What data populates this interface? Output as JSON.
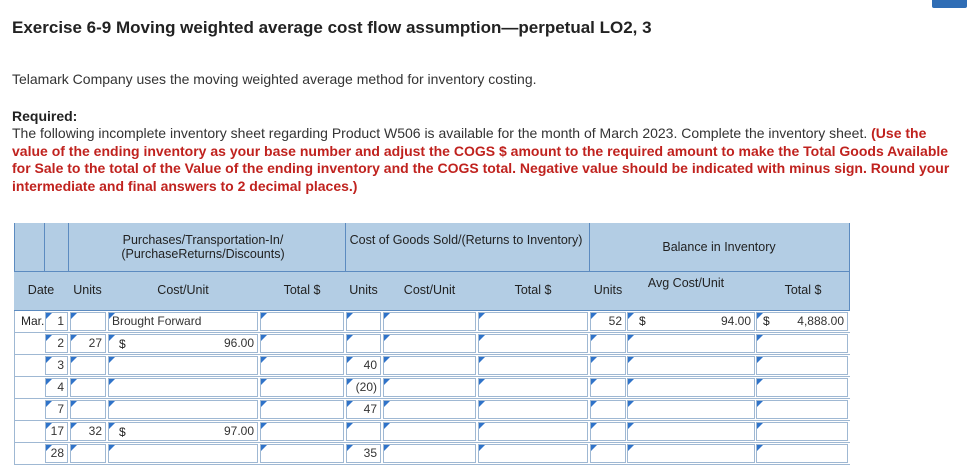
{
  "exercise": {
    "title": "Exercise 6-9 Moving weighted average cost flow assumption—perpetual LO2, 3",
    "intro": "Telamark Company uses the moving weighted average method for inventory costing.",
    "required_label": "Required:",
    "required_text": "The following incomplete inventory sheet regarding Product W506 is available for the month of March 2023. Complete the inventory sheet.",
    "instructions": "(Use the value of the ending inventory as your base number and adjust the COGS $ amount to the required amount to make the Total Goods Available for Sale to the total of the Value of the ending inventory and the COGS total. Negative value should be indicated with minus sign. Round your intermediate and final answers to 2 decimal places.)"
  },
  "table": {
    "group_headers": {
      "purchases": "Purchases/Transportation-In/ (PurchaseReturns/Discounts)",
      "cogs": "Cost of Goods Sold/(Returns to Inventory)",
      "balance": "Balance in Inventory"
    },
    "columns": {
      "date": "Date",
      "p_units": "Units",
      "p_cost": "Cost/Unit",
      "p_total": "Total $",
      "c_units": "Units",
      "c_cost": "Cost/Unit",
      "c_total": "Total $",
      "b_units": "Units",
      "b_avg": "Avg Cost/Unit",
      "b_total": "Total $"
    },
    "month": "Mar.",
    "currency": "$",
    "rows": [
      {
        "day": "1",
        "p_units": "",
        "p_note": "Brought Forward",
        "p_cost": "",
        "c_units": "",
        "b_units": "52",
        "b_avg": "94.00",
        "b_total": "4,888.00"
      },
      {
        "day": "2",
        "p_units": "27",
        "p_cost": "96.00",
        "c_units": ""
      },
      {
        "day": "3",
        "p_units": "",
        "p_cost": "",
        "c_units": "40"
      },
      {
        "day": "4",
        "p_units": "",
        "p_cost": "",
        "c_units": "(20)"
      },
      {
        "day": "7",
        "p_units": "",
        "p_cost": "",
        "c_units": "47"
      },
      {
        "day": "17",
        "p_units": "32",
        "p_cost": "97.00",
        "c_units": ""
      },
      {
        "day": "28",
        "p_units": "",
        "p_cost": "",
        "c_units": "35"
      }
    ]
  }
}
